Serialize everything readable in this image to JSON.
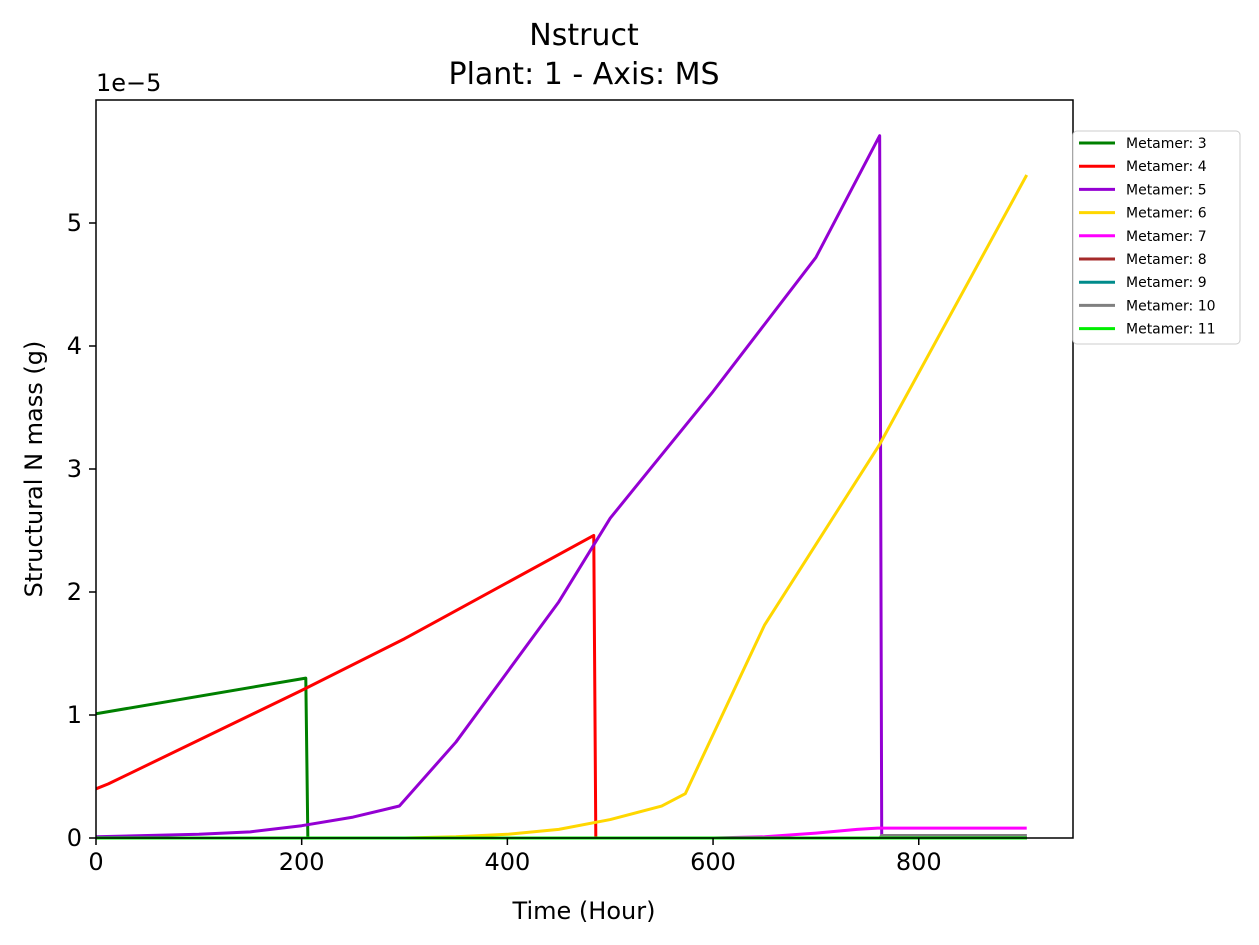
{
  "chart_data": {
    "type": "line",
    "title": "Nstruct",
    "subtitle": "Plant: 1 - Axis: MS",
    "xlabel": "Time (Hour)",
    "ylabel": "Structural N mass (g)",
    "y_offset_text": "1e−5",
    "xlim": [
      0,
      950
    ],
    "ylim": [
      0,
      6e-05
    ],
    "x_ticks": [
      0,
      200,
      400,
      600,
      800
    ],
    "x_tick_labels": [
      "0",
      "200",
      "400",
      "600",
      "800"
    ],
    "y_ticks": [
      0,
      1e-05,
      2e-05,
      3e-05,
      4e-05,
      5e-05
    ],
    "y_tick_labels": [
      "0",
      "1",
      "2",
      "3",
      "4",
      "5"
    ],
    "grid": false,
    "legend_placement": "outside-right",
    "series": [
      {
        "name": "Metamer: 3",
        "color": "#008000",
        "points": [
          [
            0,
            1.01e-05
          ],
          [
            204,
            1.3e-05
          ],
          [
            206,
            0
          ],
          [
            905,
            0
          ]
        ]
      },
      {
        "name": "Metamer: 4",
        "color": "#ff0000",
        "points": [
          [
            0,
            4e-06
          ],
          [
            12,
            4.4e-06
          ],
          [
            200,
            1.2e-05
          ],
          [
            300,
            1.62e-05
          ],
          [
            484,
            2.46e-05
          ],
          [
            486,
            0
          ],
          [
            905,
            0
          ]
        ]
      },
      {
        "name": "Metamer: 5",
        "color": "#9400d3",
        "points": [
          [
            0,
            1e-07
          ],
          [
            100,
            3e-07
          ],
          [
            150,
            5e-07
          ],
          [
            200,
            1e-06
          ],
          [
            250,
            1.7e-06
          ],
          [
            295,
            2.6e-06
          ],
          [
            350,
            7.8e-06
          ],
          [
            400,
            1.35e-05
          ],
          [
            450,
            1.92e-05
          ],
          [
            500,
            2.6e-05
          ],
          [
            600,
            3.63e-05
          ],
          [
            700,
            4.72e-05
          ],
          [
            762,
            5.71e-05
          ],
          [
            764,
            2e-07
          ],
          [
            905,
            2e-07
          ]
        ]
      },
      {
        "name": "Metamer: 6",
        "color": "#ffd700",
        "points": [
          [
            0,
            0
          ],
          [
            300,
            0
          ],
          [
            350,
            1e-07
          ],
          [
            400,
            3e-07
          ],
          [
            450,
            7e-07
          ],
          [
            500,
            1.5e-06
          ],
          [
            550,
            2.6e-06
          ],
          [
            573,
            3.6e-06
          ],
          [
            650,
            1.73e-05
          ],
          [
            762,
            3.2e-05
          ],
          [
            905,
            5.39e-05
          ]
        ]
      },
      {
        "name": "Metamer: 7",
        "color": "#ff00ff",
        "points": [
          [
            0,
            0
          ],
          [
            600,
            0
          ],
          [
            650,
            1e-07
          ],
          [
            700,
            4e-07
          ],
          [
            740,
            7e-07
          ],
          [
            760,
            8e-07
          ],
          [
            905,
            8e-07
          ]
        ]
      },
      {
        "name": "Metamer: 8",
        "color": "#a52a2a",
        "points": [
          [
            0,
            0
          ],
          [
            905,
            0
          ]
        ]
      },
      {
        "name": "Metamer: 9",
        "color": "#008b8b",
        "points": [
          [
            0,
            0
          ],
          [
            905,
            0
          ]
        ]
      },
      {
        "name": "Metamer: 10",
        "color": "#808080",
        "points": [
          [
            0,
            0
          ],
          [
            762,
            0
          ],
          [
            764,
            2e-07
          ],
          [
            905,
            2e-07
          ]
        ]
      },
      {
        "name": "Metamer: 11",
        "color": "#00ee00",
        "points": [
          [
            0,
            0
          ],
          [
            905,
            0
          ]
        ]
      }
    ]
  }
}
